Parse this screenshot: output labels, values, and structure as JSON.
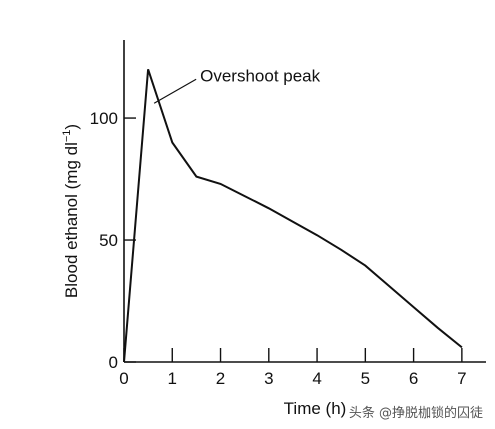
{
  "chart_data": {
    "type": "line",
    "title": "",
    "xlabel": "Time (h)",
    "ylabel": "Blood ethanol (mg dl",
    "ylabel_unit_exp": "−1",
    "ylabel_close": ")",
    "xlim": [
      0,
      7.5
    ],
    "ylim": [
      0,
      132
    ],
    "x_ticks": [
      0,
      1,
      2,
      3,
      4,
      5,
      6,
      7
    ],
    "x_tick_labels": [
      "0",
      "1",
      "2",
      "3",
      "4",
      "5",
      "6",
      "7"
    ],
    "y_ticks": [
      0,
      50,
      100
    ],
    "y_tick_labels": [
      "0",
      "50",
      "100"
    ],
    "grid": false,
    "series": [
      {
        "x": [
          0,
          0.5,
          1.0,
          1.5,
          2.0,
          2.5,
          3.0,
          3.5,
          4.0,
          4.5,
          5.0,
          5.5,
          6.0,
          6.5,
          7.0
        ],
        "y": [
          0,
          120,
          90,
          76,
          73,
          68,
          63,
          57.5,
          52,
          46,
          39.5,
          31,
          22.5,
          14,
          6
        ],
        "color": "#111111"
      }
    ],
    "annotations": [
      {
        "text": "Overshoot peak",
        "x": 0.5,
        "y": 120
      }
    ]
  },
  "watermark": "头条 @挣脱枷锁的囚徒"
}
